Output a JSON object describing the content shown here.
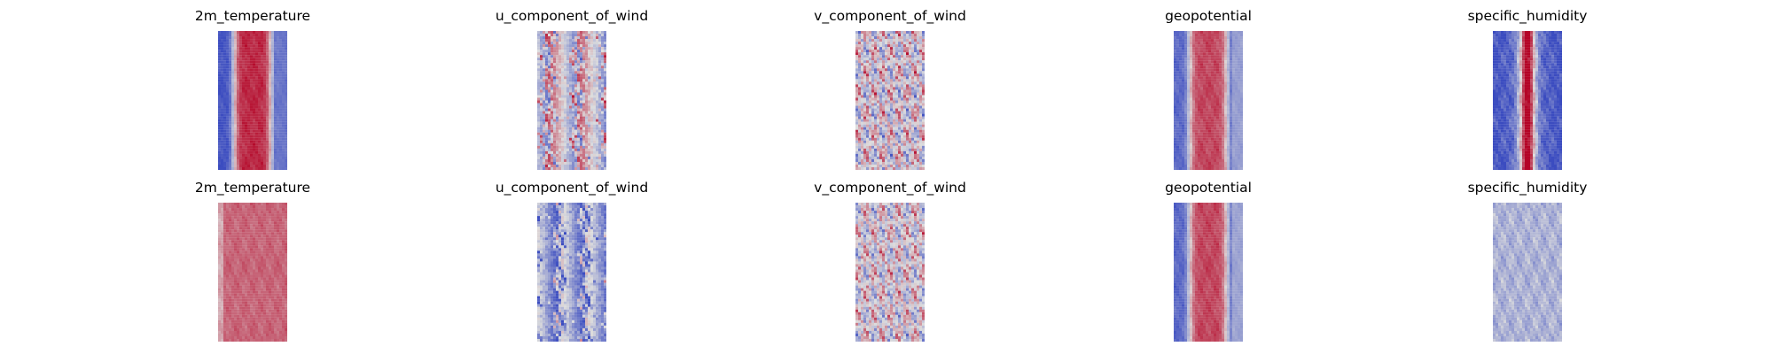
{
  "chart_data": [
    {
      "type": "heatmap",
      "title": "2m_temperature",
      "colormap": "coolwarm",
      "axes": "off",
      "pattern": "band",
      "band_strength": 0.92,
      "noise": 0.18,
      "left_edge": 0.03,
      "right_edge": 0.3,
      "colors": {
        "low": "#3b4cc0",
        "mid": "#dddddd",
        "high": "#b40426"
      }
    },
    {
      "type": "heatmap",
      "title": "u_component_of_wind",
      "colormap": "coolwarm",
      "axes": "off",
      "pattern": "streaks",
      "band_strength": 0.2,
      "noise": 0.5,
      "left_edge": 0.45,
      "right_edge": 0.45,
      "colors": {
        "low": "#3b4cc0",
        "mid": "#dddddd",
        "high": "#b40426"
      }
    },
    {
      "type": "heatmap",
      "title": "v_component_of_wind",
      "colormap": "coolwarm",
      "axes": "off",
      "pattern": "swirls",
      "band_strength": 0.1,
      "noise": 0.55,
      "left_edge": 0.5,
      "right_edge": 0.5,
      "colors": {
        "low": "#3b4cc0",
        "mid": "#dddddd",
        "high": "#b40426"
      }
    },
    {
      "type": "heatmap",
      "title": "geopotential",
      "colormap": "coolwarm",
      "axes": "off",
      "pattern": "band",
      "band_strength": 0.85,
      "noise": 0.2,
      "left_edge": 0.1,
      "right_edge": 0.55,
      "colors": {
        "low": "#3b4cc0",
        "mid": "#dddddd",
        "high": "#b40426"
      }
    },
    {
      "type": "heatmap",
      "title": "specific_humidity",
      "colormap": "coolwarm",
      "axes": "off",
      "pattern": "narrow-band",
      "band_strength": 0.95,
      "noise": 0.3,
      "left_edge": 0.02,
      "right_edge": 0.02,
      "colors": {
        "low": "#3b4cc0",
        "mid": "#dddddd",
        "high": "#b40426"
      }
    },
    {
      "type": "heatmap",
      "title": "2m_temperature",
      "colormap": "coolwarm",
      "axes": "off",
      "pattern": "uniform-warm",
      "band_strength": 0.78,
      "noise": 0.15,
      "left_edge": 0.5,
      "right_edge": 0.7,
      "colors": {
        "low": "#3b4cc0",
        "mid": "#dddddd",
        "high": "#b40426"
      }
    },
    {
      "type": "heatmap",
      "title": "u_component_of_wind",
      "colormap": "coolwarm",
      "axes": "off",
      "pattern": "streaks-cool",
      "band_strength": 0.15,
      "noise": 0.45,
      "left_edge": 0.2,
      "right_edge": 0.2,
      "colors": {
        "low": "#3b4cc0",
        "mid": "#dddddd",
        "high": "#b40426"
      }
    },
    {
      "type": "heatmap",
      "title": "v_component_of_wind",
      "colormap": "coolwarm",
      "axes": "off",
      "pattern": "swirls",
      "band_strength": 0.05,
      "noise": 0.5,
      "left_edge": 0.45,
      "right_edge": 0.45,
      "colors": {
        "low": "#3b4cc0",
        "mid": "#dddddd",
        "high": "#b40426"
      }
    },
    {
      "type": "heatmap",
      "title": "geopotential",
      "colormap": "coolwarm",
      "axes": "off",
      "pattern": "band",
      "band_strength": 0.85,
      "noise": 0.2,
      "left_edge": 0.1,
      "right_edge": 0.6,
      "colors": {
        "low": "#3b4cc0",
        "mid": "#dddddd",
        "high": "#b40426"
      }
    },
    {
      "type": "heatmap",
      "title": "specific_humidity",
      "colormap": "coolwarm",
      "axes": "off",
      "pattern": "uniform-cool",
      "band_strength": 0.35,
      "noise": 0.25,
      "left_edge": 0.3,
      "right_edge": 0.3,
      "colors": {
        "low": "#3b4cc0",
        "mid": "#dddddd",
        "high": "#b40426"
      }
    }
  ]
}
